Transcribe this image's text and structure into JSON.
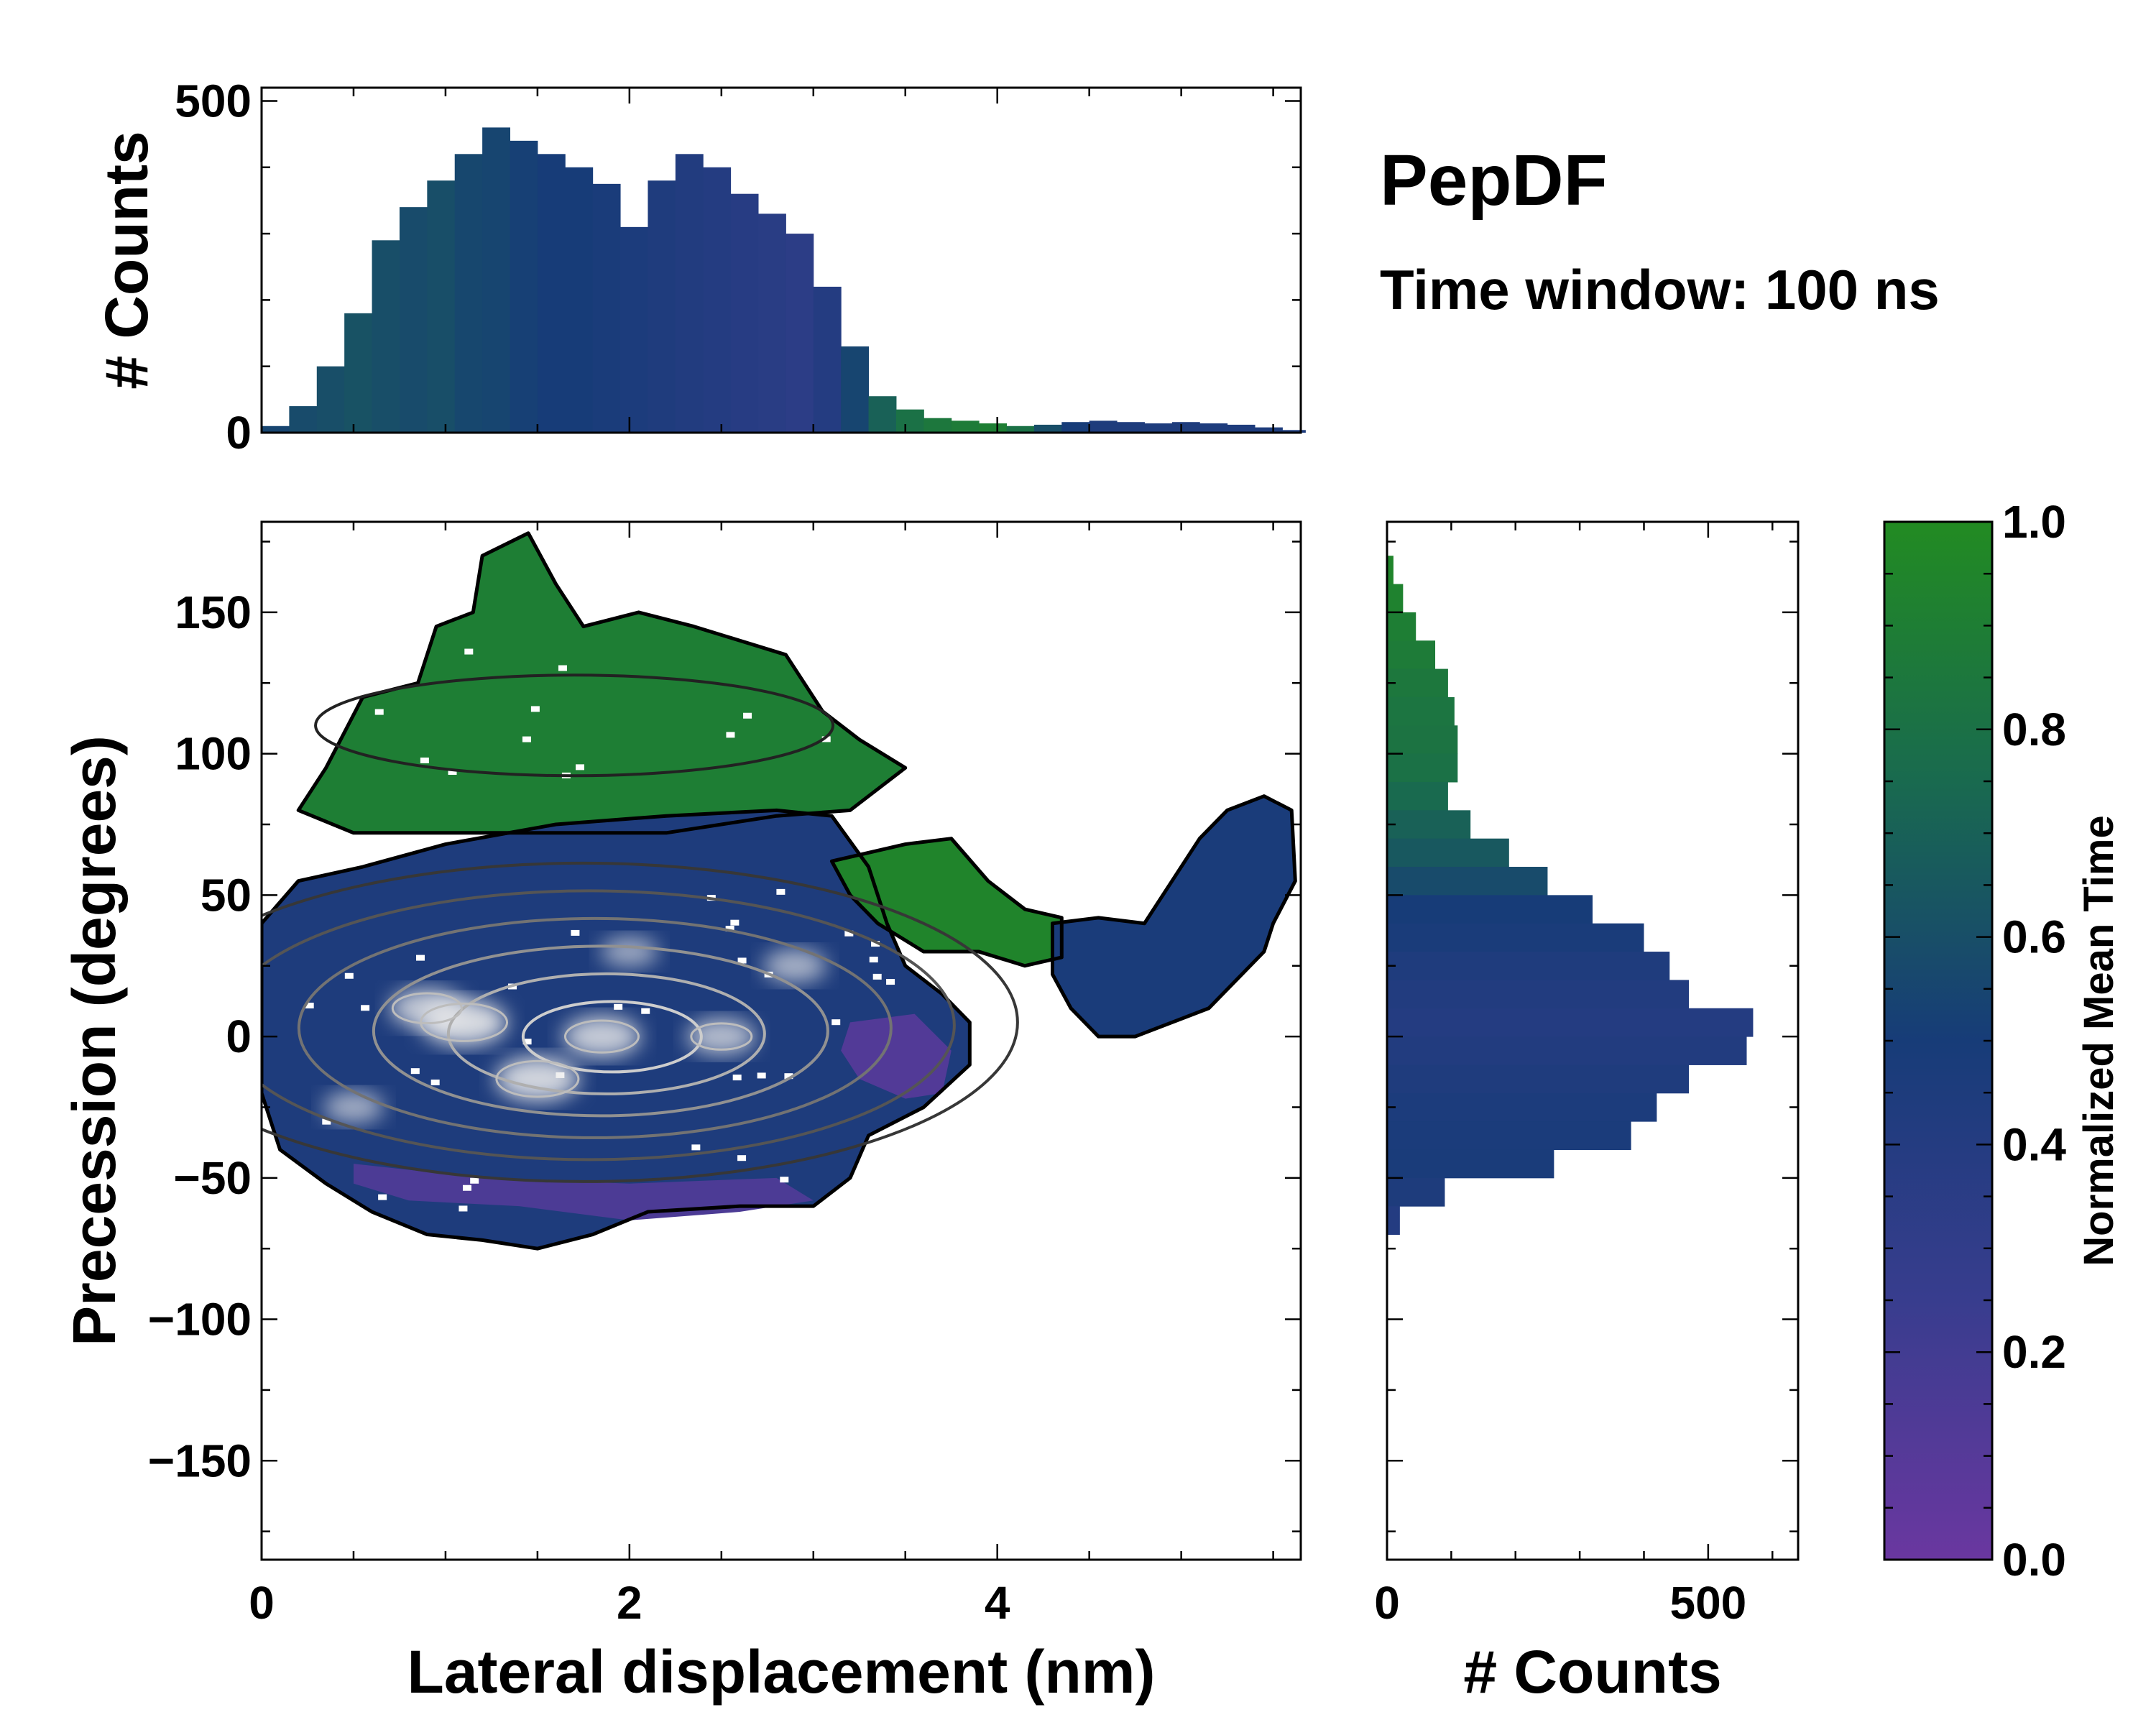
{
  "chart_data": [
    {
      "id": "top",
      "type": "bar",
      "xlabel": "",
      "ylabel": "# Counts",
      "xlim": [
        0,
        5.65
      ],
      "ylim": [
        0,
        520
      ],
      "yticks": [
        0,
        500
      ],
      "x": [
        0.075,
        0.225,
        0.375,
        0.525,
        0.675,
        0.825,
        0.975,
        1.125,
        1.275,
        1.425,
        1.575,
        1.725,
        1.875,
        2.025,
        2.175,
        2.325,
        2.475,
        2.625,
        2.775,
        2.925,
        3.075,
        3.225,
        3.375,
        3.525,
        3.675,
        3.825,
        3.975,
        4.125,
        4.275,
        4.425,
        4.575,
        4.725,
        4.875,
        5.025,
        5.175,
        5.325,
        5.475,
        5.6
      ],
      "values": [
        10,
        40,
        100,
        180,
        290,
        340,
        380,
        420,
        460,
        440,
        420,
        400,
        375,
        310,
        380,
        420,
        400,
        360,
        330,
        300,
        220,
        130,
        55,
        35,
        22,
        18,
        14,
        10,
        12,
        16,
        18,
        16,
        14,
        16,
        14,
        12,
        8,
        4
      ],
      "bar_norm_time": [
        0.55,
        0.58,
        0.6,
        0.62,
        0.6,
        0.58,
        0.6,
        0.56,
        0.55,
        0.52,
        0.5,
        0.5,
        0.48,
        0.46,
        0.44,
        0.42,
        0.4,
        0.38,
        0.36,
        0.34,
        0.4,
        0.55,
        0.7,
        0.8,
        0.85,
        0.88,
        0.9,
        0.8,
        0.6,
        0.5,
        0.45,
        0.45,
        0.45,
        0.45,
        0.45,
        0.45,
        0.45,
        0.45
      ]
    },
    {
      "id": "main",
      "type": "heatmap",
      "xlabel": "Lateral displacement (nm)",
      "ylabel": "Precession (degrees)",
      "xlim": [
        0,
        5.65
      ],
      "ylim": [
        -185,
        182
      ],
      "xticks": [
        0,
        2,
        4
      ],
      "yticks": [
        -150,
        -100,
        -50,
        0,
        50,
        100,
        150
      ],
      "regions": [
        {
          "label": "high precession cluster",
          "mean_time": 0.9,
          "outline": [
            [
              0.35,
              95
            ],
            [
              0.55,
              120
            ],
            [
              0.85,
              125
            ],
            [
              0.95,
              145
            ],
            [
              1.15,
              150
            ],
            [
              1.2,
              170
            ],
            [
              1.45,
              178
            ],
            [
              1.6,
              160
            ],
            [
              1.75,
              145
            ],
            [
              2.05,
              150
            ],
            [
              2.35,
              145
            ],
            [
              2.6,
              140
            ],
            [
              2.85,
              135
            ],
            [
              3.05,
              115
            ],
            [
              3.25,
              105
            ],
            [
              3.5,
              95
            ],
            [
              3.2,
              80
            ],
            [
              2.8,
              78
            ],
            [
              2.2,
              72
            ],
            [
              1.6,
              72
            ],
            [
              1.0,
              72
            ],
            [
              0.5,
              72
            ],
            [
              0.2,
              80
            ]
          ]
        },
        {
          "label": "main cluster",
          "mean_time": 0.45,
          "outline": [
            [
              0.0,
              40
            ],
            [
              0.2,
              55
            ],
            [
              0.55,
              60
            ],
            [
              1.0,
              68
            ],
            [
              1.6,
              75
            ],
            [
              2.2,
              78
            ],
            [
              2.8,
              80
            ],
            [
              3.1,
              78
            ],
            [
              3.3,
              60
            ],
            [
              3.4,
              40
            ],
            [
              3.5,
              25
            ],
            [
              3.7,
              15
            ],
            [
              3.85,
              5
            ],
            [
              3.85,
              -10
            ],
            [
              3.6,
              -25
            ],
            [
              3.3,
              -35
            ],
            [
              3.2,
              -50
            ],
            [
              3.0,
              -60
            ],
            [
              2.6,
              -60
            ],
            [
              2.1,
              -62
            ],
            [
              1.8,
              -70
            ],
            [
              1.5,
              -75
            ],
            [
              1.2,
              -72
            ],
            [
              0.9,
              -70
            ],
            [
              0.6,
              -62
            ],
            [
              0.35,
              -52
            ],
            [
              0.1,
              -40
            ],
            [
              0.0,
              -20
            ]
          ]
        },
        {
          "label": "mid shoulder",
          "mean_time": 0.95,
          "outline": [
            [
              3.1,
              62
            ],
            [
              3.5,
              68
            ],
            [
              3.75,
              70
            ],
            [
              3.95,
              55
            ],
            [
              4.15,
              45
            ],
            [
              4.35,
              42
            ],
            [
              4.35,
              28
            ],
            [
              4.15,
              25
            ],
            [
              3.9,
              30
            ],
            [
              3.6,
              30
            ],
            [
              3.35,
              40
            ],
            [
              3.2,
              50
            ]
          ]
        },
        {
          "label": "far tail",
          "mean_time": 0.48,
          "outline": [
            [
              4.3,
              40
            ],
            [
              4.55,
              42
            ],
            [
              4.8,
              40
            ],
            [
              4.95,
              55
            ],
            [
              5.1,
              70
            ],
            [
              5.25,
              80
            ],
            [
              5.45,
              85
            ],
            [
              5.6,
              80
            ],
            [
              5.62,
              55
            ],
            [
              5.5,
              40
            ],
            [
              5.45,
              30
            ],
            [
              5.3,
              20
            ],
            [
              5.15,
              10
            ],
            [
              4.95,
              5
            ],
            [
              4.75,
              0
            ],
            [
              4.55,
              0
            ],
            [
              4.4,
              10
            ],
            [
              4.3,
              22
            ]
          ]
        },
        {
          "label": "purple pocket",
          "mean_time": 0.12,
          "outline": [
            [
              3.2,
              5
            ],
            [
              3.55,
              8
            ],
            [
              3.75,
              -5
            ],
            [
              3.7,
              -20
            ],
            [
              3.5,
              -22
            ],
            [
              3.25,
              -15
            ],
            [
              3.15,
              -5
            ]
          ]
        },
        {
          "label": "lower purple band",
          "mean_time": 0.15,
          "outline": [
            [
              0.5,
              -45
            ],
            [
              1.2,
              -50
            ],
            [
              2.0,
              -52
            ],
            [
              2.8,
              -50
            ],
            [
              3.0,
              -58
            ],
            [
              2.6,
              -62
            ],
            [
              2.0,
              -65
            ],
            [
              1.4,
              -60
            ],
            [
              0.8,
              -58
            ],
            [
              0.5,
              -52
            ]
          ]
        }
      ],
      "density_peaks": [
        {
          "x": 1.1,
          "y": 5,
          "level": 1.0
        },
        {
          "x": 1.5,
          "y": -15,
          "level": 0.95
        },
        {
          "x": 1.85,
          "y": 0,
          "level": 0.85
        },
        {
          "x": 0.9,
          "y": 10,
          "level": 0.8
        },
        {
          "x": 2.5,
          "y": 0,
          "level": 0.7
        },
        {
          "x": 2.9,
          "y": 25,
          "level": 0.6
        },
        {
          "x": 0.5,
          "y": -25,
          "level": 0.55
        },
        {
          "x": 2.0,
          "y": 30,
          "level": 0.5
        }
      ],
      "contour_levels": [
        0.15,
        0.3,
        0.45,
        0.6,
        0.75,
        0.9
      ]
    },
    {
      "id": "right",
      "type": "bar",
      "orientation": "horizontal",
      "xlabel": "# Counts",
      "ylabel": "",
      "xlim": [
        0,
        640
      ],
      "ylim": [
        -185,
        182
      ],
      "xticks": [
        0,
        500
      ],
      "y": [
        165,
        155,
        145,
        135,
        125,
        115,
        105,
        95,
        85,
        75,
        65,
        55,
        45,
        35,
        25,
        15,
        5,
        -5,
        -15,
        -25,
        -35,
        -45,
        -55,
        -65
      ],
      "values": [
        10,
        25,
        45,
        75,
        95,
        105,
        110,
        110,
        95,
        130,
        190,
        250,
        320,
        400,
        440,
        470,
        570,
        560,
        470,
        420,
        380,
        260,
        90,
        20
      ],
      "bar_norm_time": [
        0.95,
        0.93,
        0.9,
        0.88,
        0.85,
        0.83,
        0.82,
        0.8,
        0.75,
        0.7,
        0.65,
        0.58,
        0.5,
        0.48,
        0.44,
        0.42,
        0.4,
        0.42,
        0.44,
        0.46,
        0.47,
        0.48,
        0.45,
        0.4
      ]
    }
  ],
  "colorbar": {
    "label": "Normalized Mean Time",
    "range": [
      0,
      1
    ],
    "ticks": [
      0.0,
      0.2,
      0.4,
      0.6,
      0.8,
      1.0
    ],
    "tick_labels": [
      "0.0",
      "0.2",
      "0.4",
      "0.6",
      "0.8",
      "1.0"
    ],
    "stops": [
      {
        "t": 0.0,
        "color": "#6a37a0"
      },
      {
        "t": 0.25,
        "color": "#383d8e"
      },
      {
        "t": 0.5,
        "color": "#173c78"
      },
      {
        "t": 0.75,
        "color": "#196a4f"
      },
      {
        "t": 1.0,
        "color": "#228b22"
      }
    ]
  },
  "annotation": {
    "title": "PepDF",
    "subtitle": "Time window: 100 ns"
  }
}
